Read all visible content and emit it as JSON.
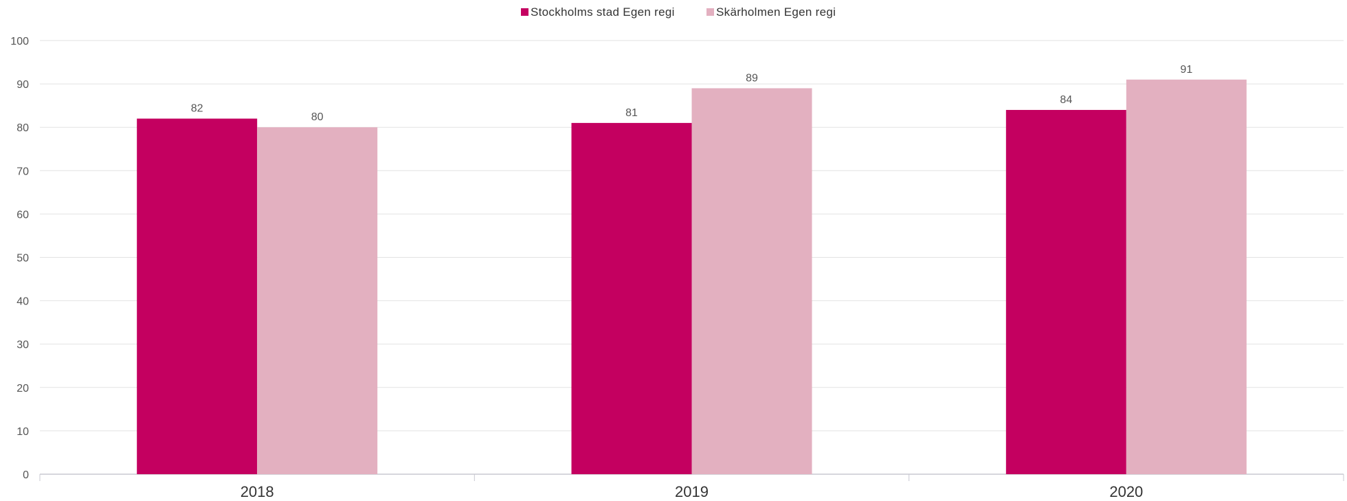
{
  "chart_data": {
    "type": "bar",
    "categories": [
      "2018",
      "2019",
      "2020"
    ],
    "series": [
      {
        "name": "Stockholms stad Egen regi",
        "color": "#c40060",
        "values": [
          82,
          81,
          84
        ]
      },
      {
        "name": "Skärholmen Egen regi",
        "color": "#e3b0c0",
        "values": [
          80,
          89,
          91
        ]
      }
    ],
    "value_labels": [
      [
        "82",
        "81",
        "84"
      ],
      [
        "80",
        "89",
        "91"
      ]
    ],
    "ylim": [
      0,
      100
    ],
    "yticks": [
      0,
      10,
      20,
      30,
      40,
      50,
      60,
      70,
      80,
      90,
      100
    ],
    "grid": true,
    "legend_position": "top-center"
  }
}
